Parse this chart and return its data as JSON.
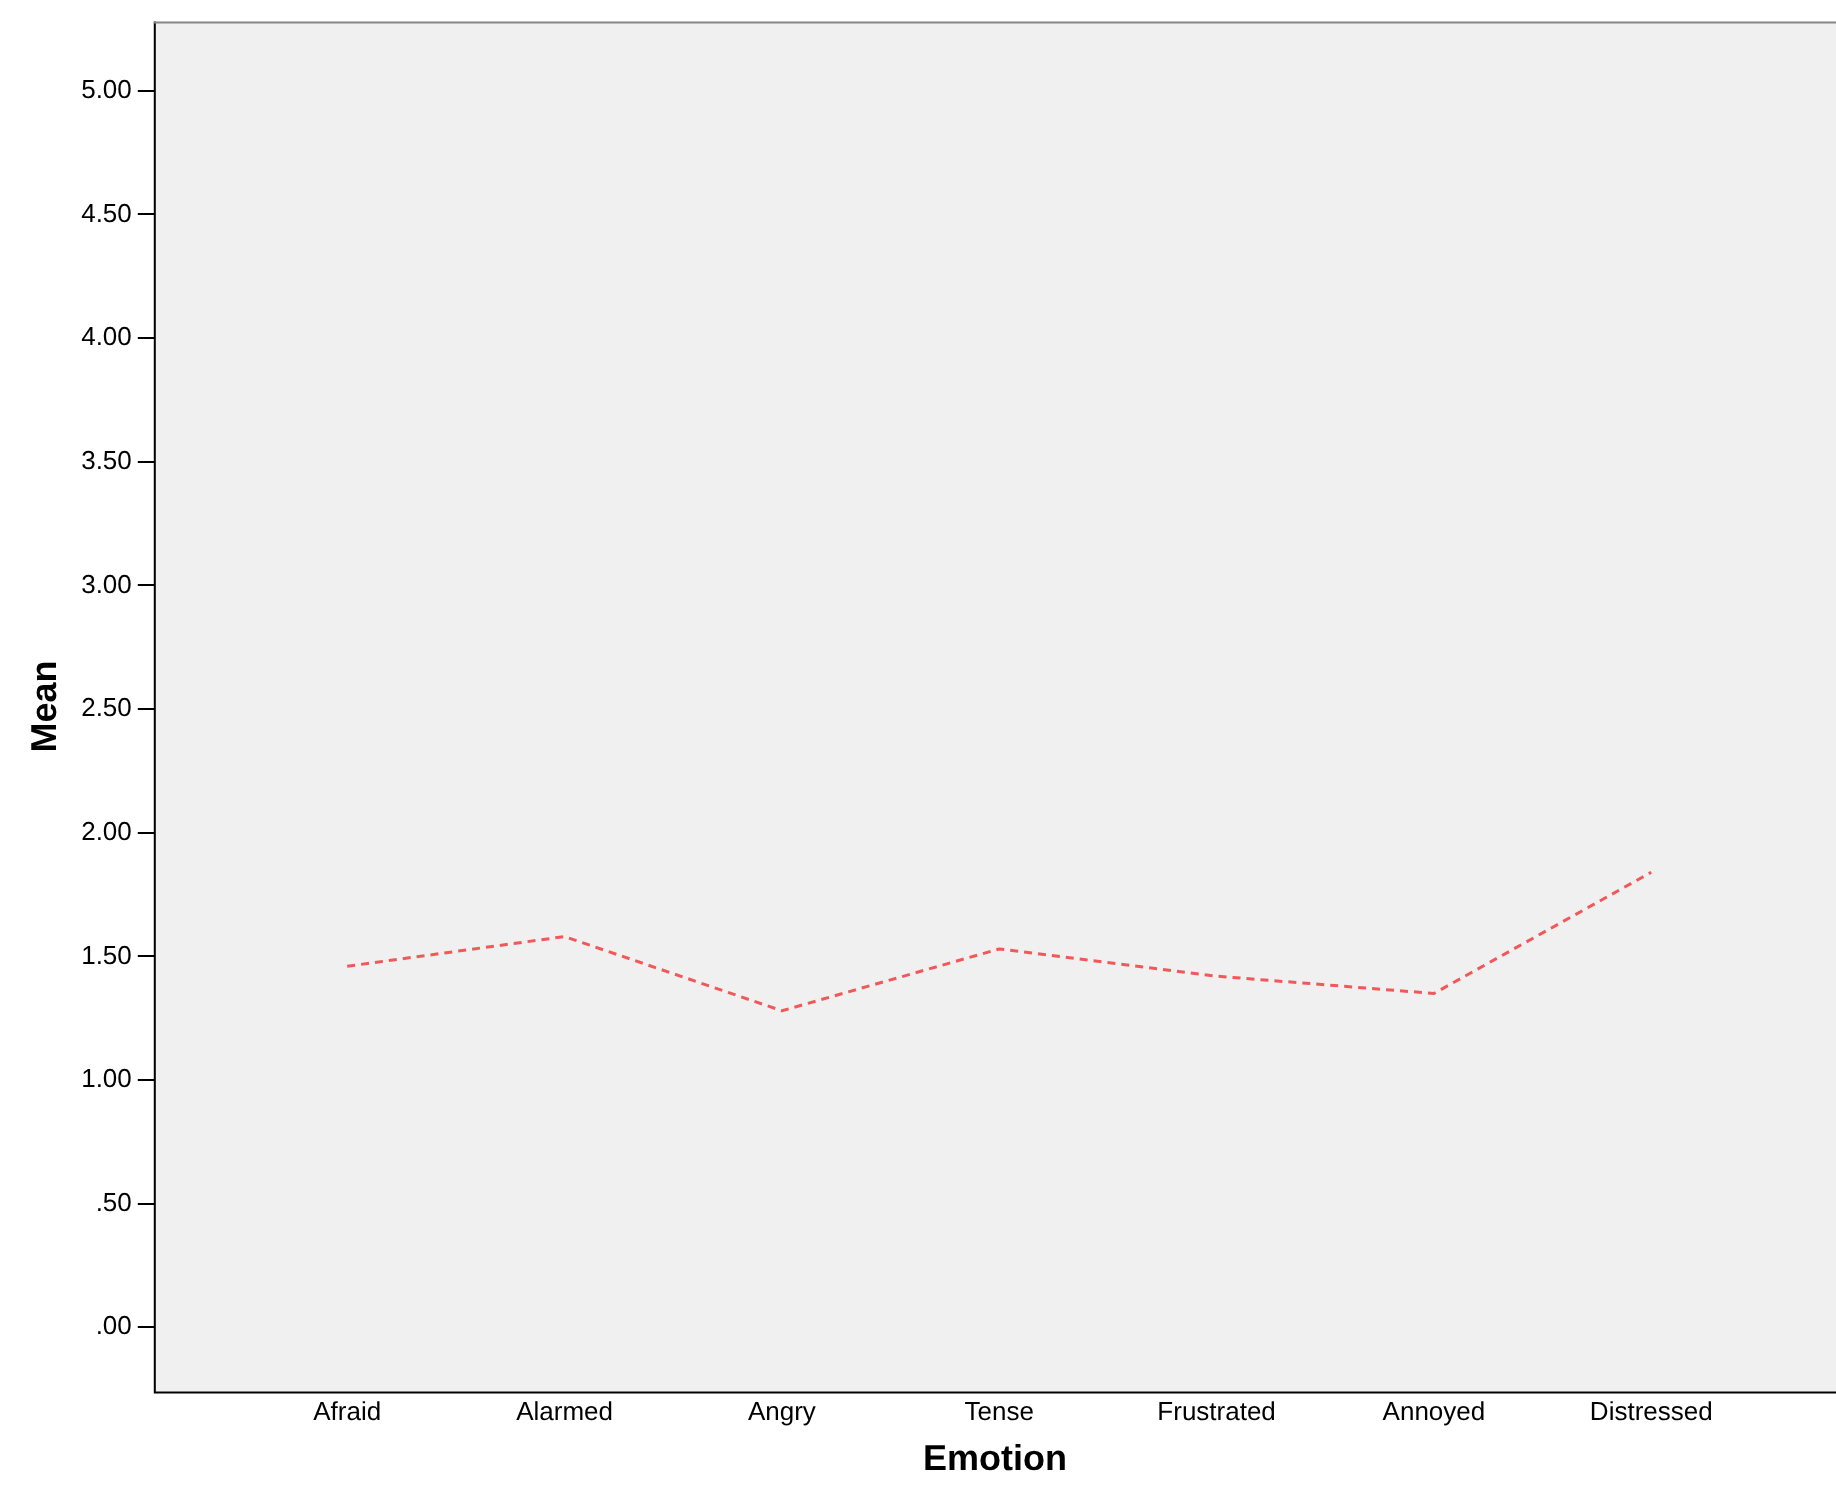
{
  "chart_data": {
    "type": "line",
    "xlabel": "Emotion",
    "ylabel": "Mean",
    "categories": [
      "Afraid",
      "Alarmed",
      "Angry",
      "Tense",
      "Frustrated",
      "Annoyed",
      "Distressed"
    ],
    "series": [
      {
        "color": "#f0585a",
        "values": [
          1.46,
          1.58,
          1.28,
          1.53,
          1.42,
          1.35,
          1.84
        ]
      }
    ],
    "ylim": [
      -0.26,
      5.28
    ],
    "yticks": [
      {
        "value": 0,
        "label": ".00"
      },
      {
        "value": 0.5,
        "label": ".50"
      },
      {
        "value": 1,
        "label": "1.00"
      },
      {
        "value": 1.5,
        "label": "1.50"
      },
      {
        "value": 2,
        "label": "2.00"
      },
      {
        "value": 2.5,
        "label": "2.50"
      },
      {
        "value": 3,
        "label": "3.00"
      },
      {
        "value": 3.5,
        "label": "3.50"
      },
      {
        "value": 4,
        "label": "4.00"
      },
      {
        "value": 4.5,
        "label": "4.50"
      },
      {
        "value": 5,
        "label": "5.00"
      }
    ],
    "grid": false,
    "legend": false,
    "marker": "none",
    "line_style": "dashed"
  }
}
